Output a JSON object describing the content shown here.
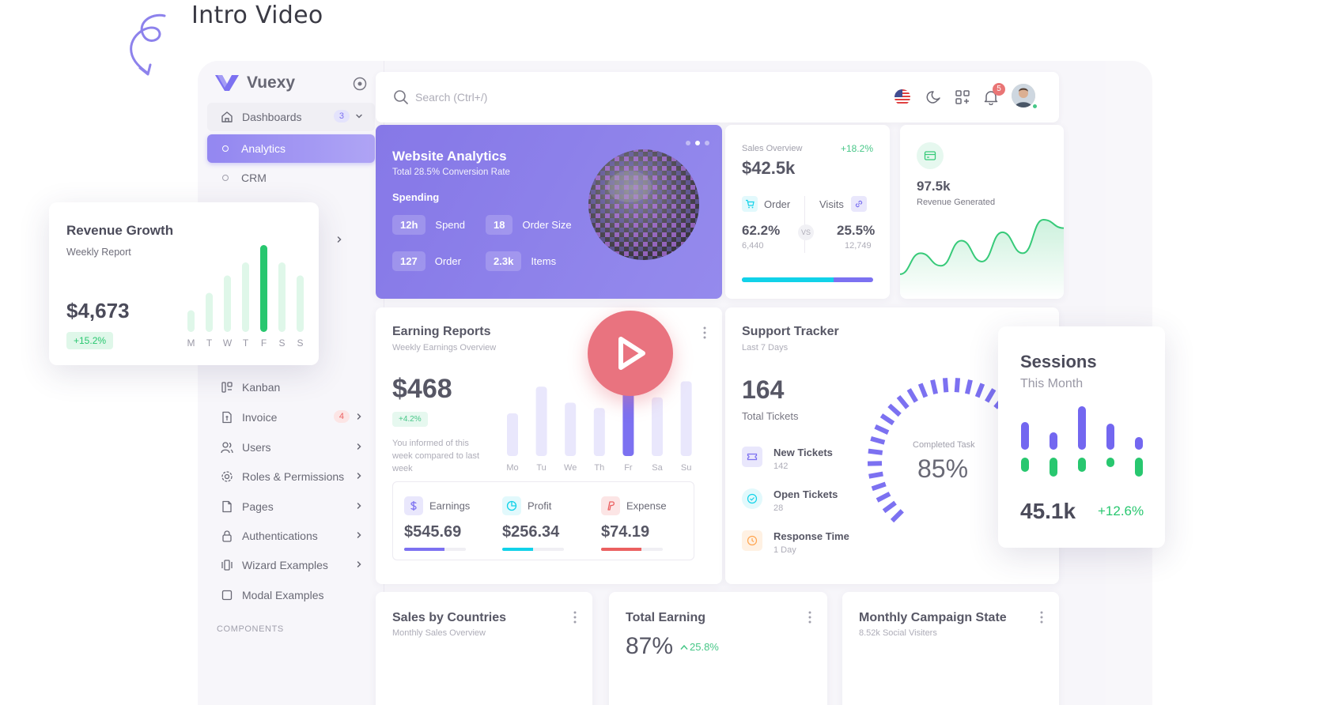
{
  "intro_title": "Intro Video",
  "brand": {
    "name": "Vuexy"
  },
  "sidebar": {
    "dashboards": {
      "label": "Dashboards",
      "badge": "3"
    },
    "sub_items": [
      {
        "label": "Analytics"
      },
      {
        "label": "CRM"
      }
    ],
    "items": [
      {
        "label": "Kanban"
      },
      {
        "label": "Invoice",
        "badge": "4"
      },
      {
        "label": "Users"
      },
      {
        "label": "Roles & Permissions"
      },
      {
        "label": "Pages"
      },
      {
        "label": "Authentications"
      },
      {
        "label": "Wizard Examples"
      },
      {
        "label": "Modal Examples"
      }
    ],
    "section_label": "COMPONENTS"
  },
  "topbar": {
    "search_placeholder": "Search (Ctrl+/)",
    "notification_count": "5"
  },
  "website_analytics": {
    "title": "Website Analytics",
    "subtitle": "Total 28.5% Conversion Rate",
    "section": "Spending",
    "stats": [
      {
        "value": "12h",
        "label": "Spend"
      },
      {
        "value": "18",
        "label": "Order Size"
      },
      {
        "value": "127",
        "label": "Order"
      },
      {
        "value": "2.3k",
        "label": "Items"
      }
    ]
  },
  "sales_overview": {
    "label": "Sales Overview",
    "trend": "+18.2%",
    "value": "$42.5k",
    "order_label": "Order",
    "order_pct": "62.2%",
    "order_num": "6,440",
    "visits_label": "Visits",
    "visits_pct": "25.5%",
    "visits_num": "12,749",
    "vs": "VS",
    "order_share": 0.7
  },
  "revenue_generated": {
    "value": "97.5k",
    "label": "Revenue Generated",
    "series": [
      20,
      45,
      30,
      60,
      35,
      70,
      45,
      85,
      75
    ]
  },
  "earning_reports": {
    "title": "Earning Reports",
    "subtitle": "Weekly Earnings Overview",
    "value": "$468",
    "badge": "+4.2%",
    "note": "You informed of this week compared to last week",
    "days": [
      "Mo",
      "Tu",
      "We",
      "Th",
      "Fr",
      "Sa",
      "Su"
    ],
    "bars": [
      40,
      65,
      50,
      45,
      75,
      55,
      70
    ],
    "highlight_index": 4,
    "earnings": {
      "label": "Earnings",
      "value": "$545.69",
      "progress": 0.65,
      "color": "#7367f0"
    },
    "profit": {
      "label": "Profit",
      "value": "$256.34",
      "progress": 0.5,
      "color": "#00cfe8"
    },
    "expense": {
      "label": "Expense",
      "value": "$74.19",
      "progress": 0.65,
      "color": "#ea5455"
    }
  },
  "support_tracker": {
    "title": "Support Tracker",
    "subtitle": "Last 7 Days",
    "total": "164",
    "total_label": "Total Tickets",
    "items": [
      {
        "title": "New Tickets",
        "sub": "142"
      },
      {
        "title": "Open Tickets",
        "sub": "28"
      },
      {
        "title": "Response Time",
        "sub": "1 Day"
      }
    ],
    "completed_label": "Completed Task",
    "completed_value": "85%"
  },
  "bottom_cards": {
    "sales_by_countries": {
      "title": "Sales by Countries",
      "subtitle": "Monthly Sales Overview"
    },
    "total_earning": {
      "title": "Total Earning",
      "value": "87%",
      "trend": "25.8%"
    },
    "monthly_campaign": {
      "title": "Monthly Campaign State",
      "subtitle": "8.52k Social Visiters"
    }
  },
  "revenue_growth": {
    "title": "Revenue Growth",
    "subtitle": "Weekly Report",
    "value": "$4,673",
    "badge": "+15.2%",
    "days": [
      "M",
      "T",
      "W",
      "T",
      "F",
      "S",
      "S"
    ],
    "bars": [
      25,
      45,
      65,
      80,
      100,
      80,
      65
    ],
    "highlight_index": 4
  },
  "sessions": {
    "title": "Sessions",
    "subtitle": "This Month",
    "value": "45.1k",
    "trend": "+12.6%",
    "top": [
      35,
      22,
      55,
      33,
      16
    ],
    "bottom": [
      18,
      24,
      18,
      12,
      24
    ]
  },
  "colors": {
    "primary": "#7367f0",
    "success": "#28c76f",
    "info": "#00cfe8",
    "danger": "#ea5455",
    "warning": "#ff9f43"
  }
}
